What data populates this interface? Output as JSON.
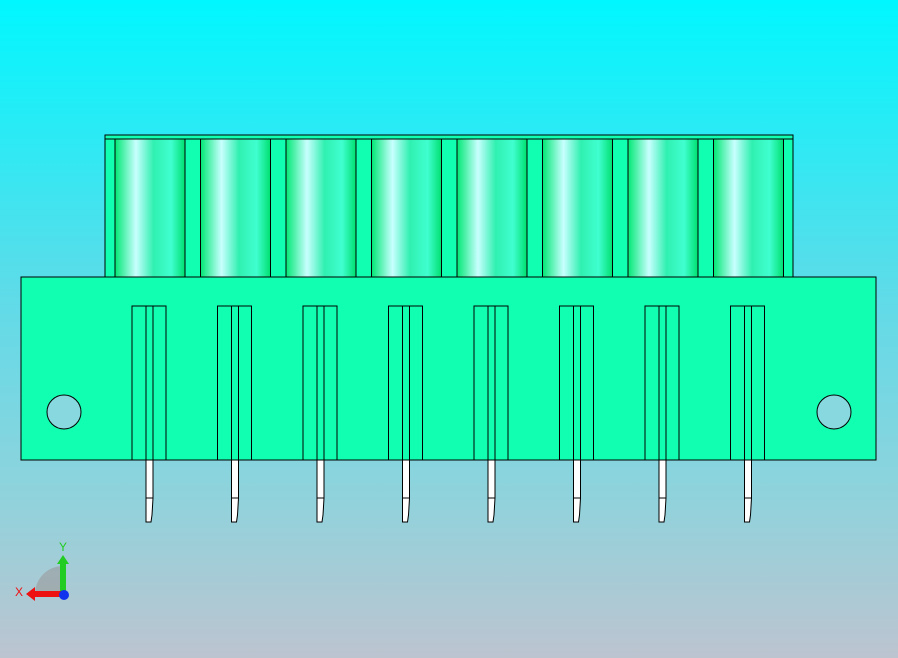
{
  "viewport": {
    "colors": {
      "body": "#11ffb0",
      "edge": "#000000",
      "pin": "#ffffff",
      "hole": "#88d8e0",
      "cylinder_light": "#c8ffff",
      "cylinder_dark": "#00e874"
    }
  },
  "triad": {
    "x_label": "X",
    "y_label": "Y",
    "x_color": "#ee1111",
    "y_color": "#22cc22",
    "z_color": "#1133ee"
  }
}
